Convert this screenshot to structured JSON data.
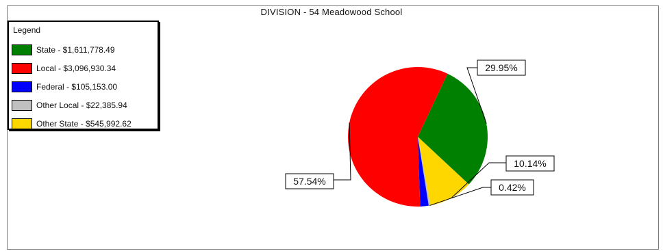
{
  "chart_data": {
    "type": "pie",
    "title": "DIVISION - 54  Meadowood School",
    "legend_title": "Legend",
    "legend_position": "top-left",
    "slices": [
      {
        "label": "State - $1,611,778.49",
        "value": 1611778.49,
        "percent_label": "29.95%",
        "color": "#008000"
      },
      {
        "label": "Local - $3,096,930.34",
        "value": 3096930.34,
        "percent_label": "57.54%",
        "color": "#ff0000"
      },
      {
        "label": "Federal - $105,153.00",
        "value": 105153.0,
        "percent_label": "",
        "color": "#0000ff"
      },
      {
        "label": "Other Local - $22,385.94",
        "value": 22385.94,
        "percent_label": "0.42%",
        "color": "#c0c0c0"
      },
      {
        "label": "Other State - $545,992.62",
        "value": 545992.62,
        "percent_label": "10.14%",
        "color": "#ffd700"
      }
    ]
  }
}
